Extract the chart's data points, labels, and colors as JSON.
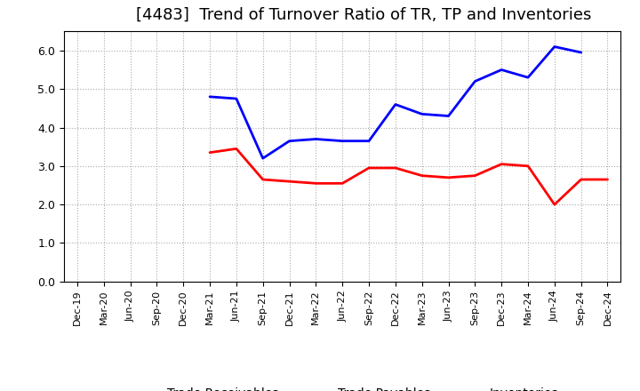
{
  "title": "[4483]  Trend of Turnover Ratio of TR, TP and Inventories",
  "x_labels": [
    "Dec-19",
    "Mar-20",
    "Jun-20",
    "Sep-20",
    "Dec-20",
    "Mar-21",
    "Jun-21",
    "Sep-21",
    "Dec-21",
    "Mar-22",
    "Jun-22",
    "Sep-22",
    "Dec-22",
    "Mar-23",
    "Jun-23",
    "Sep-23",
    "Dec-23",
    "Mar-24",
    "Jun-24",
    "Sep-24",
    "Dec-24"
  ],
  "trade_receivables": [
    null,
    null,
    null,
    null,
    null,
    3.35,
    3.45,
    2.65,
    2.6,
    2.55,
    2.55,
    2.95,
    2.95,
    2.75,
    2.7,
    2.75,
    3.05,
    3.0,
    2.0,
    2.65,
    2.65
  ],
  "trade_payables": [
    null,
    null,
    null,
    null,
    null,
    4.8,
    4.75,
    3.2,
    3.65,
    3.7,
    3.65,
    3.65,
    4.6,
    4.35,
    4.3,
    5.2,
    5.5,
    5.3,
    6.1,
    5.95,
    null
  ],
  "inventories": [
    null,
    null,
    null,
    null,
    null,
    null,
    null,
    null,
    null,
    null,
    null,
    null,
    null,
    null,
    null,
    null,
    null,
    null,
    null,
    null,
    null
  ],
  "ylim": [
    0.0,
    6.5
  ],
  "yticks": [
    0.0,
    1.0,
    2.0,
    3.0,
    4.0,
    5.0,
    6.0
  ],
  "tr_color": "#FF0000",
  "tp_color": "#0000FF",
  "inv_color": "#00AA00",
  "background_color": "#FFFFFF",
  "grid_color": "#AAAAAA",
  "title_fontsize": 13,
  "legend_fontsize": 10
}
